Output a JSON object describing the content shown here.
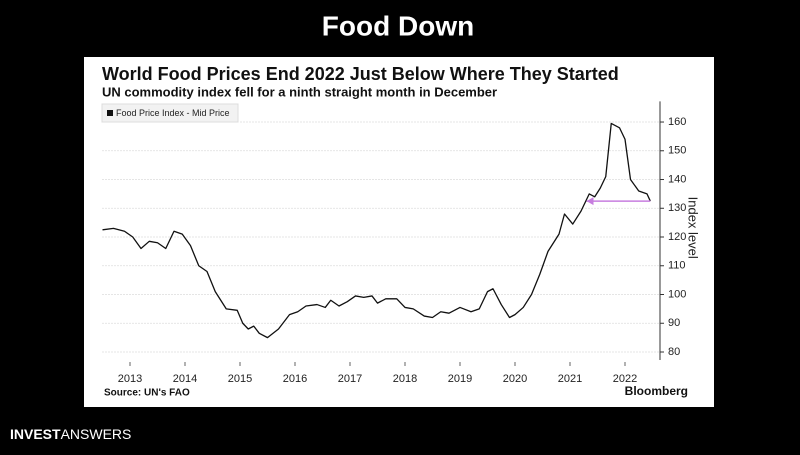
{
  "slide_title": "Food Down",
  "footer_brand": [
    "INVEST",
    "ANSWERS"
  ],
  "chart_data": {
    "type": "line",
    "title": "World Food Prices End 2022 Just Below Where They Started",
    "subtitle": "UN commodity index fell for a ninth straight month in December",
    "ylabel": "Index level",
    "source": "Source: UN's FAO",
    "credit": "Bloomberg",
    "xlim": [
      2013,
      2023
    ],
    "ylim": [
      80,
      163
    ],
    "yticks": [
      80,
      90,
      100,
      110,
      120,
      130,
      140,
      150,
      160
    ],
    "xticks": [
      {
        "value": 2013.5,
        "label": "2013"
      },
      {
        "value": 2014.5,
        "label": "2014"
      },
      {
        "value": 2015.5,
        "label": "2015"
      },
      {
        "value": 2016.5,
        "label": "2016"
      },
      {
        "value": 2017.5,
        "label": "2017"
      },
      {
        "value": 2018.5,
        "label": "2018"
      },
      {
        "value": 2019.5,
        "label": "2019"
      },
      {
        "value": 2020.5,
        "label": "2020"
      },
      {
        "value": 2021.5,
        "label": "2021"
      },
      {
        "value": 2022.5,
        "label": "2022"
      }
    ],
    "grid": true,
    "legend": "top-left",
    "reference_arrow": {
      "from": 2022.96,
      "to": 2021.8,
      "value": 132.5,
      "color": "#c77ddf"
    },
    "series": [
      {
        "name": "Food Price Index - Mid Price",
        "color": "#111111",
        "x": [
          2013.0,
          2013.2,
          2013.4,
          2013.55,
          2013.7,
          2013.85,
          2014.0,
          2014.15,
          2014.3,
          2014.45,
          2014.6,
          2014.75,
          2014.9,
          2015.05,
          2015.25,
          2015.45,
          2015.55,
          2015.65,
          2015.75,
          2015.85,
          2016.0,
          2016.2,
          2016.4,
          2016.55,
          2016.7,
          2016.9,
          2017.05,
          2017.15,
          2017.3,
          2017.45,
          2017.6,
          2017.75,
          2017.9,
          2018.0,
          2018.15,
          2018.35,
          2018.5,
          2018.65,
          2018.85,
          2019.0,
          2019.15,
          2019.3,
          2019.5,
          2019.7,
          2019.85,
          2020.0,
          2020.1,
          2020.25,
          2020.4,
          2020.5,
          2020.65,
          2020.8,
          2020.95,
          2021.1,
          2021.3,
          2021.4,
          2021.55,
          2021.7,
          2021.85,
          2021.95,
          2022.05,
          2022.15,
          2022.25,
          2022.4,
          2022.5,
          2022.6,
          2022.75,
          2022.9,
          2022.96
        ],
        "values": [
          122.5,
          123,
          122,
          120,
          116,
          118.5,
          118,
          116,
          122,
          121,
          117,
          110,
          108,
          101,
          95,
          94.5,
          90,
          88,
          89,
          86.5,
          85,
          88,
          93,
          94,
          96,
          96.5,
          95.5,
          98,
          96,
          97.5,
          99.5,
          99,
          99.5,
          97,
          98.5,
          98.5,
          95.5,
          95,
          92.5,
          92,
          94,
          93.5,
          95.5,
          94,
          95,
          101,
          102,
          96.5,
          92,
          93,
          95.5,
          100,
          107,
          115,
          121,
          128,
          124.5,
          129,
          135,
          134,
          137,
          141,
          159.5,
          158,
          154,
          140,
          136,
          135,
          132.5
        ]
      }
    ]
  }
}
